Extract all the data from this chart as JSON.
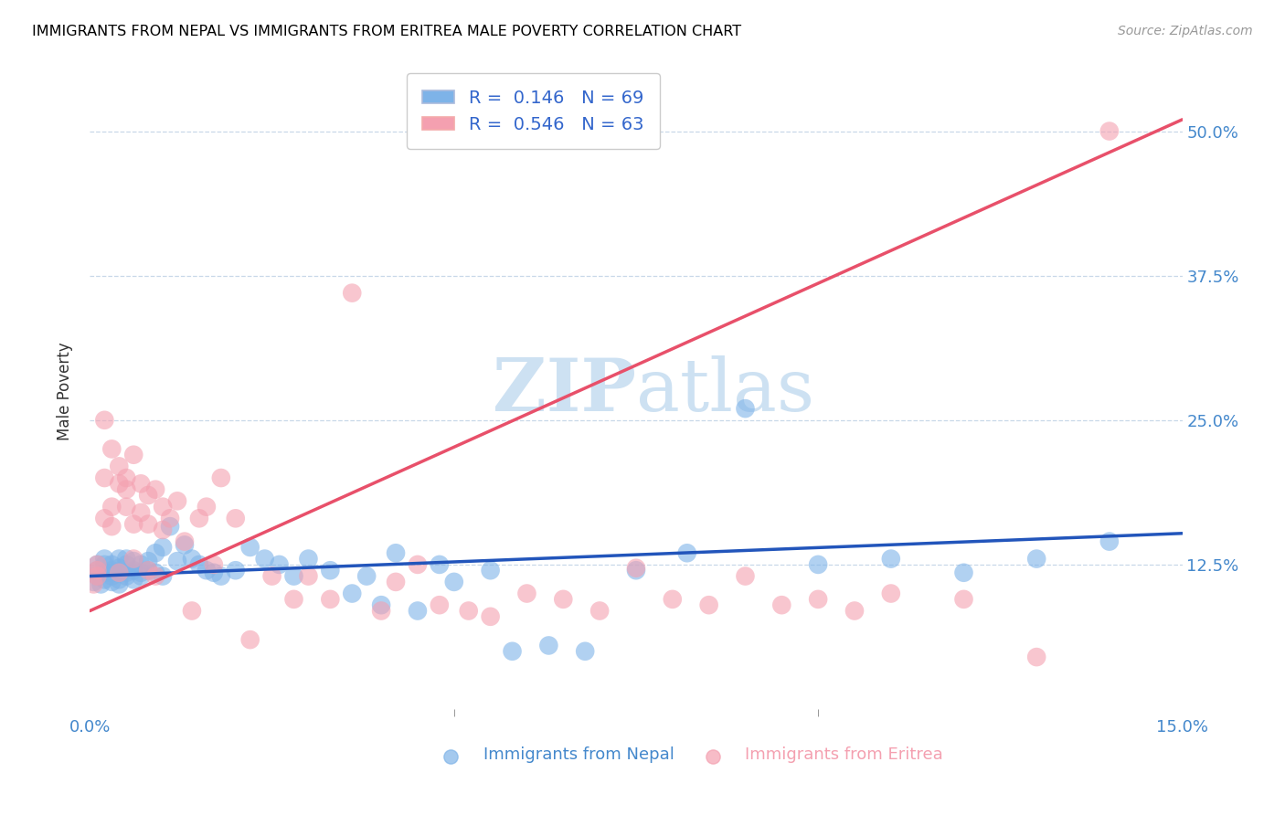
{
  "title": "IMMIGRANTS FROM NEPAL VS IMMIGRANTS FROM ERITREA MALE POVERTY CORRELATION CHART",
  "source": "Source: ZipAtlas.com",
  "xlabel_nepal": "Immigrants from Nepal",
  "xlabel_eritrea": "Immigrants from Eritrea",
  "ylabel": "Male Poverty",
  "x_min": 0.0,
  "x_max": 0.15,
  "y_min": 0.0,
  "y_max": 0.55,
  "y_ticks": [
    0.125,
    0.25,
    0.375,
    0.5
  ],
  "y_tick_labels": [
    "12.5%",
    "25.0%",
    "37.5%",
    "50.0%"
  ],
  "nepal_R": 0.146,
  "nepal_N": 69,
  "eritrea_R": 0.546,
  "eritrea_N": 63,
  "nepal_color": "#7EB3E8",
  "eritrea_color": "#F4A0B0",
  "nepal_line_color": "#2255BB",
  "eritrea_line_color": "#E8506A",
  "watermark_color": "#C5DCF0",
  "nepal_x": [
    0.0005,
    0.001,
    0.001,
    0.001,
    0.0015,
    0.002,
    0.002,
    0.002,
    0.002,
    0.003,
    0.003,
    0.003,
    0.003,
    0.003,
    0.004,
    0.004,
    0.004,
    0.004,
    0.004,
    0.005,
    0.005,
    0.005,
    0.005,
    0.006,
    0.006,
    0.006,
    0.007,
    0.007,
    0.007,
    0.008,
    0.008,
    0.009,
    0.009,
    0.01,
    0.01,
    0.011,
    0.012,
    0.013,
    0.014,
    0.015,
    0.016,
    0.017,
    0.018,
    0.02,
    0.022,
    0.024,
    0.026,
    0.028,
    0.03,
    0.033,
    0.036,
    0.038,
    0.04,
    0.042,
    0.045,
    0.048,
    0.05,
    0.055,
    0.058,
    0.063,
    0.068,
    0.075,
    0.082,
    0.09,
    0.1,
    0.11,
    0.12,
    0.13,
    0.14
  ],
  "nepal_y": [
    0.11,
    0.115,
    0.12,
    0.125,
    0.108,
    0.118,
    0.112,
    0.125,
    0.13,
    0.115,
    0.11,
    0.12,
    0.118,
    0.125,
    0.13,
    0.118,
    0.112,
    0.122,
    0.108,
    0.125,
    0.118,
    0.13,
    0.115,
    0.12,
    0.128,
    0.112,
    0.125,
    0.118,
    0.115,
    0.128,
    0.12,
    0.135,
    0.118,
    0.14,
    0.115,
    0.158,
    0.128,
    0.142,
    0.13,
    0.125,
    0.12,
    0.118,
    0.115,
    0.12,
    0.14,
    0.13,
    0.125,
    0.115,
    0.13,
    0.12,
    0.1,
    0.115,
    0.09,
    0.135,
    0.085,
    0.125,
    0.11,
    0.12,
    0.05,
    0.055,
    0.05,
    0.12,
    0.135,
    0.26,
    0.125,
    0.13,
    0.118,
    0.13,
    0.145
  ],
  "eritrea_x": [
    0.0005,
    0.001,
    0.001,
    0.001,
    0.002,
    0.002,
    0.002,
    0.003,
    0.003,
    0.003,
    0.004,
    0.004,
    0.004,
    0.005,
    0.005,
    0.005,
    0.006,
    0.006,
    0.006,
    0.007,
    0.007,
    0.008,
    0.008,
    0.008,
    0.009,
    0.009,
    0.01,
    0.01,
    0.011,
    0.012,
    0.013,
    0.014,
    0.015,
    0.016,
    0.017,
    0.018,
    0.02,
    0.022,
    0.025,
    0.028,
    0.03,
    0.033,
    0.036,
    0.04,
    0.042,
    0.045,
    0.048,
    0.052,
    0.055,
    0.06,
    0.065,
    0.07,
    0.075,
    0.08,
    0.085,
    0.09,
    0.095,
    0.1,
    0.105,
    0.11,
    0.12,
    0.13,
    0.14
  ],
  "eritrea_y": [
    0.108,
    0.12,
    0.115,
    0.125,
    0.25,
    0.2,
    0.165,
    0.225,
    0.175,
    0.158,
    0.195,
    0.21,
    0.118,
    0.2,
    0.175,
    0.19,
    0.22,
    0.16,
    0.13,
    0.195,
    0.17,
    0.185,
    0.16,
    0.12,
    0.19,
    0.115,
    0.175,
    0.155,
    0.165,
    0.18,
    0.145,
    0.085,
    0.165,
    0.175,
    0.125,
    0.2,
    0.165,
    0.06,
    0.115,
    0.095,
    0.115,
    0.095,
    0.36,
    0.085,
    0.11,
    0.125,
    0.09,
    0.085,
    0.08,
    0.1,
    0.095,
    0.085,
    0.122,
    0.095,
    0.09,
    0.115,
    0.09,
    0.095,
    0.085,
    0.1,
    0.095,
    0.045,
    0.5
  ],
  "nepal_trendline": [
    0.115,
    0.152
  ],
  "eritrea_trendline": [
    0.085,
    0.51
  ]
}
